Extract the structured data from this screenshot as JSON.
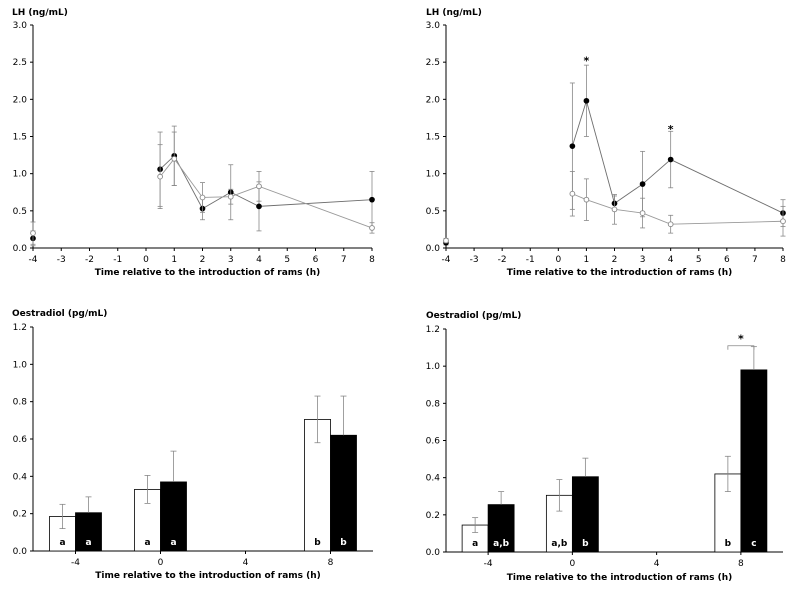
{
  "chart_data": [
    {
      "type": "line",
      "panel": "top-left",
      "ylabel": "LH (ng/mL)",
      "xlabel": "Time relative to the introduction of rams (h)",
      "xlim": [
        -4,
        8
      ],
      "ylim": [
        0,
        3.0
      ],
      "xticks": [
        "-4",
        "-3",
        "-2",
        "-1",
        "0",
        "1",
        "2",
        "3",
        "4",
        "5",
        "6",
        "7",
        "8"
      ],
      "yticks": [
        "0.0",
        "0.5",
        "1.0",
        "1.5",
        "2.0",
        "2.5",
        "3.0"
      ],
      "grid": false,
      "series": [
        {
          "marker": "filled",
          "color": "#000000",
          "points": [
            {
              "x": -4,
              "y": 0.13,
              "err": 0.1,
              "connected": false
            },
            {
              "x": 0.5,
              "y": 1.06,
              "err": 0.5
            },
            {
              "x": 1,
              "y": 1.24,
              "err": 0.4
            },
            {
              "x": 2,
              "y": 0.53,
              "err": 0.15
            },
            {
              "x": 3,
              "y": 0.75,
              "err": 0.37
            },
            {
              "x": 4,
              "y": 0.56,
              "err": 0.33
            },
            {
              "x": 8,
              "y": 0.65,
              "err": 0.38
            }
          ]
        },
        {
          "marker": "open",
          "color": "#000000",
          "points": [
            {
              "x": -4,
              "y": 0.2,
              "err": 0.15,
              "connected": false
            },
            {
              "x": 0.5,
              "y": 0.96,
              "err": 0.43
            },
            {
              "x": 1,
              "y": 1.2,
              "err": 0.36
            },
            {
              "x": 2,
              "y": 0.68,
              "err": 0.2
            },
            {
              "x": 3,
              "y": 0.69,
              "err": 0.1
            },
            {
              "x": 4,
              "y": 0.83,
              "err": 0.2
            },
            {
              "x": 8,
              "y": 0.27,
              "err": 0.07
            }
          ]
        }
      ],
      "annotations": []
    },
    {
      "type": "line",
      "panel": "top-right",
      "ylabel": "LH (ng/mL)",
      "xlabel": "Time relative to the introduction of rams (h)",
      "xlim": [
        -4,
        8
      ],
      "ylim": [
        0,
        3.0
      ],
      "xticks": [
        "-4",
        "-3",
        "-2",
        "-1",
        "0",
        "1",
        "2",
        "3",
        "4",
        "5",
        "6",
        "7",
        "8"
      ],
      "yticks": [
        "0.0",
        "0.5",
        "1.0",
        "1.5",
        "2.0",
        "2.5",
        "3.0"
      ],
      "grid": false,
      "series": [
        {
          "marker": "filled",
          "color": "#000000",
          "points": [
            {
              "x": -4,
              "y": 0.07,
              "err": 0.03,
              "connected": false
            },
            {
              "x": 0.5,
              "y": 1.37,
              "err": 0.85
            },
            {
              "x": 1,
              "y": 1.98,
              "err": 0.48
            },
            {
              "x": 2,
              "y": 0.6,
              "err": 0.1
            },
            {
              "x": 3,
              "y": 0.86,
              "err": 0.44
            },
            {
              "x": 4,
              "y": 1.19,
              "err": 0.38
            },
            {
              "x": 8,
              "y": 0.47,
              "err": 0.18
            }
          ]
        },
        {
          "marker": "open",
          "color": "#000000",
          "points": [
            {
              "x": -4,
              "y": 0.1,
              "err": 0.03,
              "connected": false
            },
            {
              "x": 0.5,
              "y": 0.73,
              "err": 0.3
            },
            {
              "x": 1,
              "y": 0.65,
              "err": 0.28
            },
            {
              "x": 2,
              "y": 0.52,
              "err": 0.2
            },
            {
              "x": 3,
              "y": 0.47,
              "err": 0.2
            },
            {
              "x": 4,
              "y": 0.32,
              "err": 0.12
            },
            {
              "x": 8,
              "y": 0.36,
              "err": 0.2
            }
          ]
        }
      ],
      "annotations": [
        {
          "text": "*",
          "x": 1,
          "y": 2.52
        },
        {
          "text": "*",
          "x": 4,
          "y": 1.6
        }
      ]
    },
    {
      "type": "bar",
      "panel": "bottom-left",
      "ylabel": "Oestradiol (pg/mL)",
      "xlabel": "Time relative to the introduction of rams (h)",
      "xlim": [
        -6,
        10
      ],
      "ylim": [
        0,
        1.2
      ],
      "xticks": [
        "-4",
        "0",
        "4",
        "8"
      ],
      "yticks": [
        "0.0",
        "0.2",
        "0.4",
        "0.6",
        "0.8",
        "1.0",
        "1.2"
      ],
      "grid": false,
      "categories": [
        "-4",
        "0",
        "8"
      ],
      "series": [
        {
          "fill": "#ffffff",
          "values": [
            0.185,
            0.33,
            0.705
          ],
          "err": [
            0.065,
            0.075,
            0.125
          ],
          "labels": [
            "a",
            "a",
            "b"
          ]
        },
        {
          "fill": "#000000",
          "values": [
            0.205,
            0.37,
            0.62
          ],
          "err": [
            0.085,
            0.165,
            0.21
          ],
          "labels": [
            "a",
            "a",
            "b"
          ]
        }
      ],
      "annotations": []
    },
    {
      "type": "bar",
      "panel": "bottom-right",
      "ylabel": "Oestradiol (pg/mL)",
      "xlabel": "Time relative to the introduction of rams (h)",
      "xlim": [
        -6,
        10
      ],
      "ylim": [
        0,
        1.2
      ],
      "xticks": [
        "-4",
        "0",
        "4",
        "8"
      ],
      "yticks": [
        "0.0",
        "0.2",
        "0.4",
        "0.6",
        "0.8",
        "1.0",
        "1.2"
      ],
      "grid": false,
      "categories": [
        "-4",
        "0",
        "8"
      ],
      "series": [
        {
          "fill": "#ffffff",
          "values": [
            0.145,
            0.305,
            0.42
          ],
          "err": [
            0.04,
            0.085,
            0.095
          ],
          "labels": [
            "a",
            "a,b",
            "b"
          ]
        },
        {
          "fill": "#000000",
          "values": [
            0.255,
            0.405,
            0.98
          ],
          "err": [
            0.07,
            0.1,
            0.125
          ],
          "labels": [
            "a,b",
            "b",
            "c"
          ]
        }
      ],
      "annotations": [
        {
          "text": "*",
          "category": "8",
          "y": 1.11
        }
      ]
    }
  ]
}
